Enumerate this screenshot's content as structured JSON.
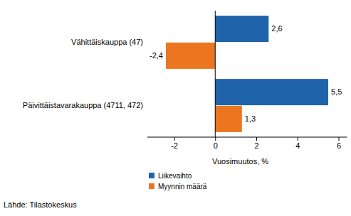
{
  "chart_data": {
    "type": "bar",
    "orientation": "horizontal",
    "categories": [
      "Vähittäiskauppa (47)",
      "Päivittäistavarakauppa (4711, 472)"
    ],
    "series": [
      {
        "name": "Liikevaihto",
        "color": "#1f64ab",
        "values": [
          2.6,
          5.5
        ],
        "value_labels": [
          "2,6",
          "5,5"
        ]
      },
      {
        "name": "Myynnin määrä",
        "color": "#ec7520",
        "values": [
          -2.4,
          1.3
        ],
        "value_labels": [
          "-2,4",
          "1,3"
        ]
      }
    ],
    "x_label": "Vuosimuutos, %",
    "xlim": [
      -3.3,
      6.4
    ],
    "xticks": [
      -2,
      0,
      2,
      4,
      6
    ],
    "data_labels": true,
    "grid": false,
    "legend": "bottom",
    "annotations": [
      "Lähde: Tilastokeskus"
    ]
  }
}
